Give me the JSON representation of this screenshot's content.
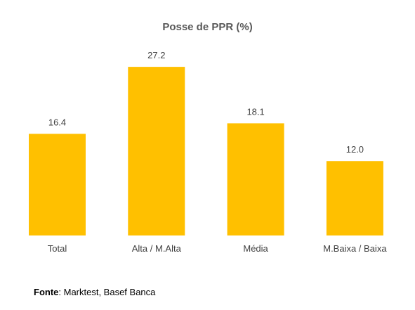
{
  "chart_data": {
    "type": "bar",
    "title": "Posse de PPR (%)",
    "categories": [
      "Total",
      "Alta / M.Alta",
      "Média",
      "M.Baixa / Baixa"
    ],
    "values": [
      16.4,
      27.2,
      18.1,
      12.0
    ],
    "value_labels": [
      "16.4",
      "27.2",
      "18.1",
      "12.0"
    ],
    "xlabel": "",
    "ylabel": "",
    "ylim": [
      0,
      30
    ],
    "grid": false,
    "legend": "none",
    "bar_color": "#FFC000"
  },
  "source": {
    "label": "Fonte",
    "text": ": Marktest, Basef Banca"
  }
}
